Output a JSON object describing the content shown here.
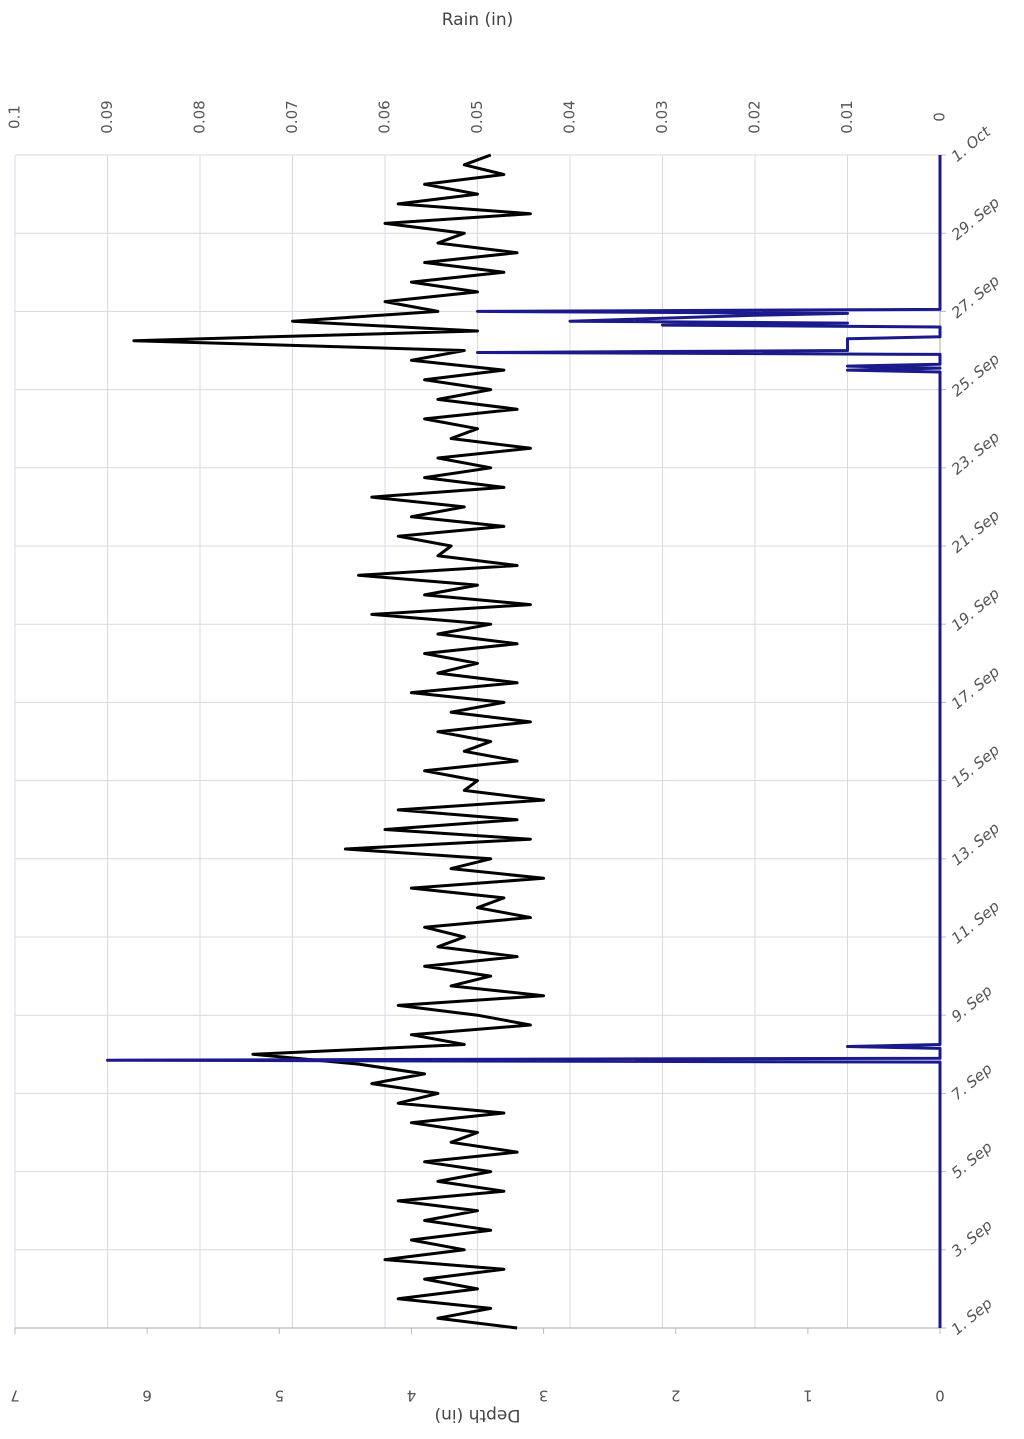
{
  "chart_data": {
    "type": "line",
    "ylabel": "Depth (in)",
    "y2label": "Rain (in)",
    "xlim": [
      1,
      31
    ],
    "xticks": [
      {
        "value": 1,
        "label": "1. Sep"
      },
      {
        "value": 3,
        "label": "3. Sep"
      },
      {
        "value": 5,
        "label": "5. Sep"
      },
      {
        "value": 7,
        "label": "7. Sep"
      },
      {
        "value": 9,
        "label": "9. Sep"
      },
      {
        "value": 11,
        "label": "11. Sep"
      },
      {
        "value": 13,
        "label": "13. Sep"
      },
      {
        "value": 15,
        "label": "15. Sep"
      },
      {
        "value": 17,
        "label": "17. Sep"
      },
      {
        "value": 19,
        "label": "19. Sep"
      },
      {
        "value": 21,
        "label": "21. Sep"
      },
      {
        "value": 23,
        "label": "23. Sep"
      },
      {
        "value": 25,
        "label": "25. Sep"
      },
      {
        "value": 27,
        "label": "27. Sep"
      },
      {
        "value": 29,
        "label": "29. Sep"
      },
      {
        "value": 31,
        "label": "1. Oct"
      }
    ],
    "ylim": [
      0,
      7
    ],
    "yticks": [
      0,
      1,
      2,
      3,
      4,
      5,
      6,
      7
    ],
    "y2lim": [
      0,
      0.1
    ],
    "y2ticks": [
      0,
      0.01,
      0.02,
      0.03,
      0.04,
      0.05,
      0.06,
      0.07,
      0.08,
      0.09,
      0.1
    ],
    "grid": true,
    "series": [
      {
        "color": "#000000",
        "x": [
          1,
          1.25,
          1.5,
          1.75,
          2,
          2.25,
          2.5,
          2.75,
          3,
          3.25,
          3.5,
          3.75,
          4,
          4.25,
          4.5,
          4.75,
          5,
          5.25,
          5.5,
          5.75,
          6,
          6.25,
          6.5,
          6.75,
          7,
          7.25,
          7.5,
          7.75,
          8,
          8.25,
          8.5,
          8.75,
          9,
          9.25,
          9.5,
          9.75,
          10,
          10.25,
          10.5,
          10.75,
          11,
          11.25,
          11.5,
          11.75,
          12,
          12.25,
          12.5,
          12.75,
          13,
          13.25,
          13.5,
          13.75,
          14,
          14.25,
          14.5,
          14.75,
          15,
          15.25,
          15.5,
          15.75,
          16,
          16.25,
          16.5,
          16.75,
          17,
          17.25,
          17.5,
          17.75,
          18,
          18.25,
          18.5,
          18.75,
          19,
          19.25,
          19.5,
          19.75,
          20,
          20.25,
          20.5,
          20.75,
          21,
          21.25,
          21.5,
          21.75,
          22,
          22.25,
          22.5,
          22.75,
          23,
          23.25,
          23.5,
          23.75,
          24,
          24.25,
          24.5,
          24.75,
          25,
          25.25,
          25.5,
          25.75,
          26,
          26.25,
          26.5,
          26.75,
          27,
          27.25,
          27.5,
          27.75,
          28,
          28.25,
          28.5,
          28.75,
          29,
          29.25,
          29.5,
          29.75,
          30,
          30.25,
          30.5,
          30.75,
          31
        ],
        "values": [
          3.2,
          3.8,
          3.4,
          4.1,
          3.5,
          3.9,
          3.3,
          4.2,
          3.6,
          4.0,
          3.4,
          3.9,
          3.5,
          4.1,
          3.3,
          3.8,
          3.4,
          3.9,
          3.2,
          3.7,
          3.5,
          4.0,
          3.3,
          4.1,
          3.8,
          4.3,
          3.9,
          4.4,
          5.2,
          3.6,
          4.0,
          3.1,
          3.5,
          4.1,
          3.0,
          3.7,
          3.4,
          3.9,
          3.2,
          3.8,
          3.6,
          3.9,
          3.1,
          3.5,
          3.3,
          4.0,
          3.0,
          3.7,
          3.4,
          4.5,
          3.1,
          4.2,
          3.2,
          4.1,
          3.0,
          3.6,
          3.5,
          3.9,
          3.2,
          3.6,
          3.4,
          3.8,
          3.1,
          3.7,
          3.3,
          4.0,
          3.2,
          3.8,
          3.5,
          3.9,
          3.2,
          3.8,
          3.4,
          4.3,
          3.1,
          3.9,
          3.5,
          4.4,
          3.2,
          3.8,
          3.7,
          4.1,
          3.3,
          4.0,
          3.6,
          4.3,
          3.3,
          3.9,
          3.4,
          3.8,
          3.1,
          3.7,
          3.5,
          3.9,
          3.2,
          3.8,
          3.4,
          3.9,
          3.3,
          4.0,
          3.6,
          6.1,
          3.5,
          4.9,
          3.8,
          4.2,
          3.5,
          4.0,
          3.3,
          3.9,
          3.2,
          3.8,
          3.6,
          4.2,
          3.1,
          4.1,
          3.5,
          3.9,
          3.3,
          3.6,
          3.4
        ]
      },
      {
        "color": "#1a1a8c",
        "axis": "y2",
        "x": [
          1,
          7.8,
          7.85,
          7.9,
          8.15,
          8.2,
          8.25,
          25.45,
          25.5,
          25.55,
          25.6,
          25.65,
          25.9,
          25.95,
          26.0,
          26.3,
          26.35,
          26.6,
          26.65,
          26.7,
          26.75,
          26.9,
          26.95,
          27.0,
          27.05,
          31
        ],
        "values": [
          0,
          0,
          0.09,
          0,
          0,
          0.01,
          0,
          0,
          0.01,
          0,
          0.01,
          0,
          0,
          0.05,
          0.01,
          0.01,
          0,
          0,
          0.03,
          0.01,
          0.04,
          0.02,
          0.01,
          0.05,
          0,
          0
        ]
      }
    ]
  }
}
